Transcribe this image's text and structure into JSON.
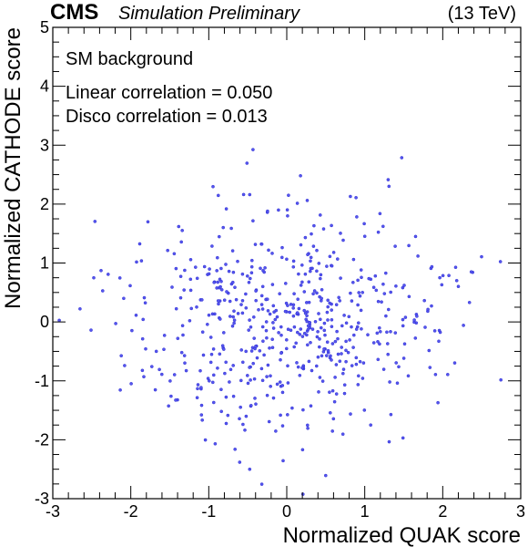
{
  "header": {
    "experiment": "CMS",
    "status": "Simulation Preliminary",
    "energy": "(13 TeV)"
  },
  "annotations": {
    "sample": "SM background",
    "linear_corr": "Linear correlation = 0.050",
    "disco_corr": "Disco correlation = 0.013"
  },
  "chart_data": {
    "type": "scatter",
    "xlabel": "Normalized QUAK score",
    "ylabel": "Normalized CATHODE score",
    "xlim": [
      -3,
      3
    ],
    "ylim": [
      -3,
      5
    ],
    "xticks": [
      -3,
      -2,
      -1,
      0,
      1,
      2,
      3
    ],
    "yticks": [
      -3,
      -2,
      -1,
      0,
      1,
      2,
      3,
      4,
      5
    ],
    "marker_color": "#4444dd",
    "series": [
      {
        "name": "SM background",
        "n_points": 600,
        "x_mean": 0.0,
        "x_std": 1.0,
        "y_mean": 0.0,
        "y_std": 1.0,
        "correlation": 0.05
      }
    ]
  }
}
